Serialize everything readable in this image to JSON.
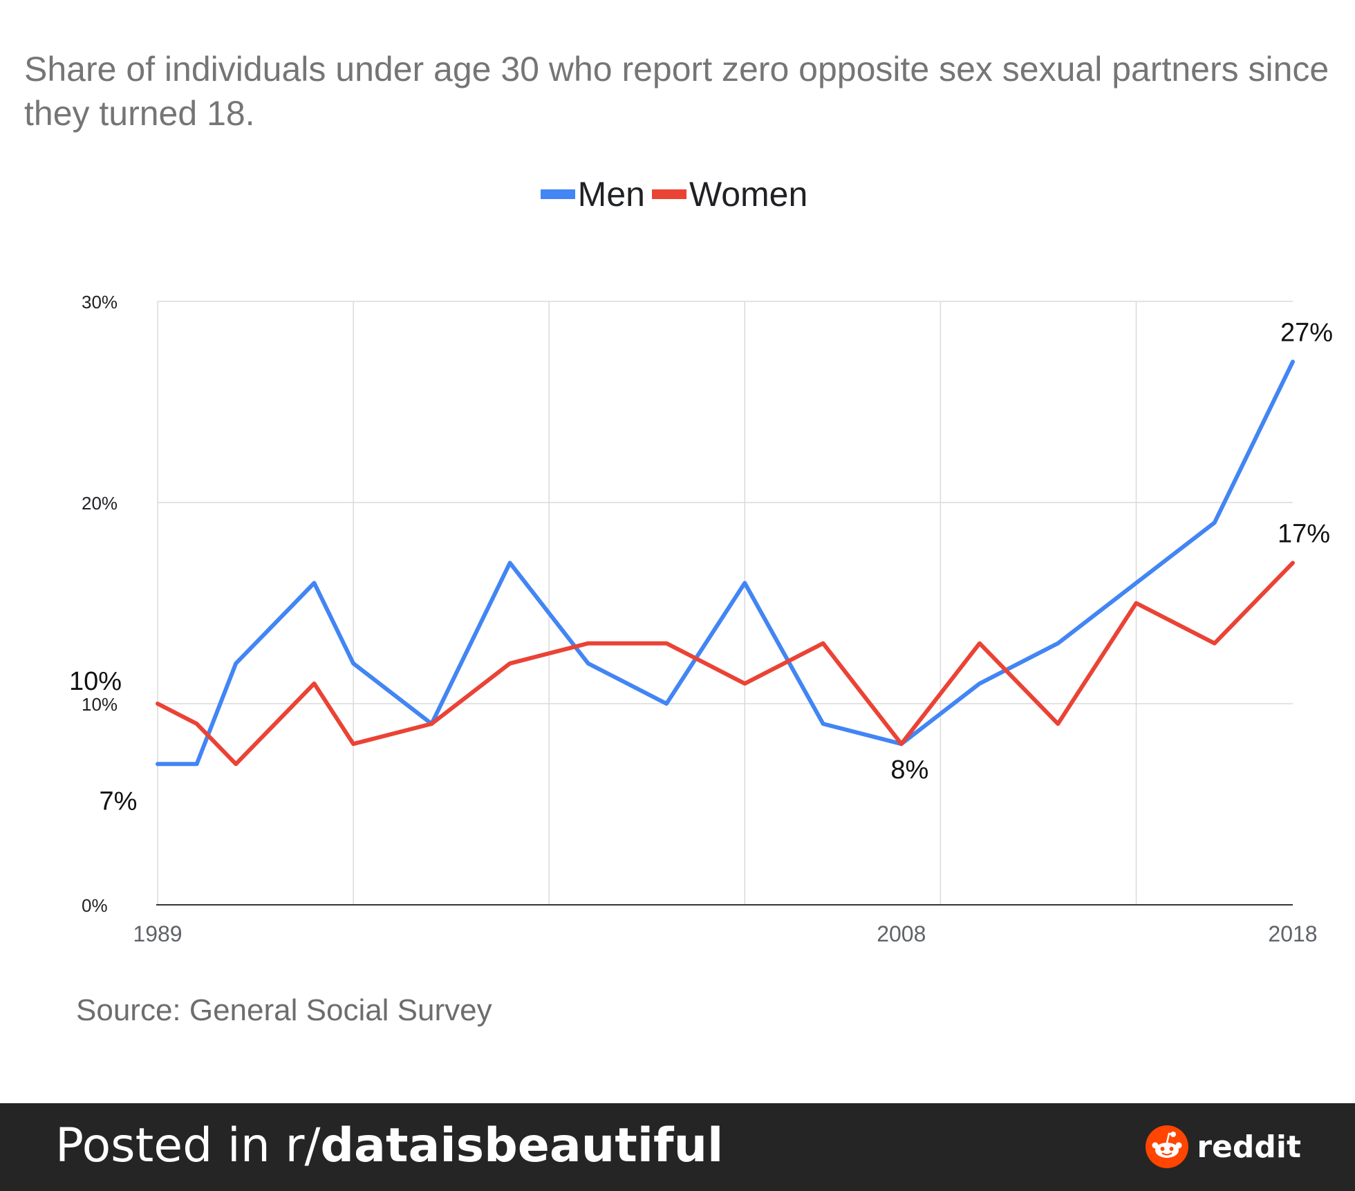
{
  "footer": {
    "prefix": "Posted in r/",
    "subreddit": "dataisbeautiful",
    "brand": "reddit"
  },
  "chart_data": {
    "type": "line",
    "title": "Share of individuals under age 30 who report zero opposite sex sexual partners since they turned 18.",
    "source": "Source: General Social Survey",
    "x": [
      1989,
      1990,
      1991,
      1993,
      1994,
      1996,
      1998,
      2000,
      2002,
      2004,
      2006,
      2008,
      2010,
      2012,
      2014,
      2016,
      2018
    ],
    "x_tick_labels": [
      "1989",
      "2008",
      "2018"
    ],
    "ylim": [
      0,
      30
    ],
    "y_ticks": [
      0,
      10,
      20,
      30
    ],
    "y_tick_labels": [
      "0%",
      "10%",
      "20%",
      "30%"
    ],
    "grid": true,
    "legend_position": "top-center",
    "series": [
      {
        "name": "Men",
        "color": "#4285f4",
        "values": [
          7,
          7,
          12,
          16,
          12,
          9,
          17,
          12,
          10,
          16,
          9,
          8,
          11,
          13,
          16,
          19,
          27
        ]
      },
      {
        "name": "Women",
        "color": "#ea4335",
        "values": [
          10,
          9,
          7,
          11,
          8,
          9,
          12,
          13,
          13,
          11,
          13,
          8,
          13,
          9,
          15,
          13,
          17
        ]
      }
    ],
    "annotations": [
      {
        "text": "7%",
        "x": 1989,
        "series": "Men"
      },
      {
        "text": "10%",
        "x": 1989,
        "series": "Women"
      },
      {
        "text": "8%",
        "x": 2008,
        "series": "Men"
      },
      {
        "text": "27%",
        "x": 2018,
        "series": "Men"
      },
      {
        "text": "17%",
        "x": 2018,
        "series": "Women"
      }
    ]
  }
}
